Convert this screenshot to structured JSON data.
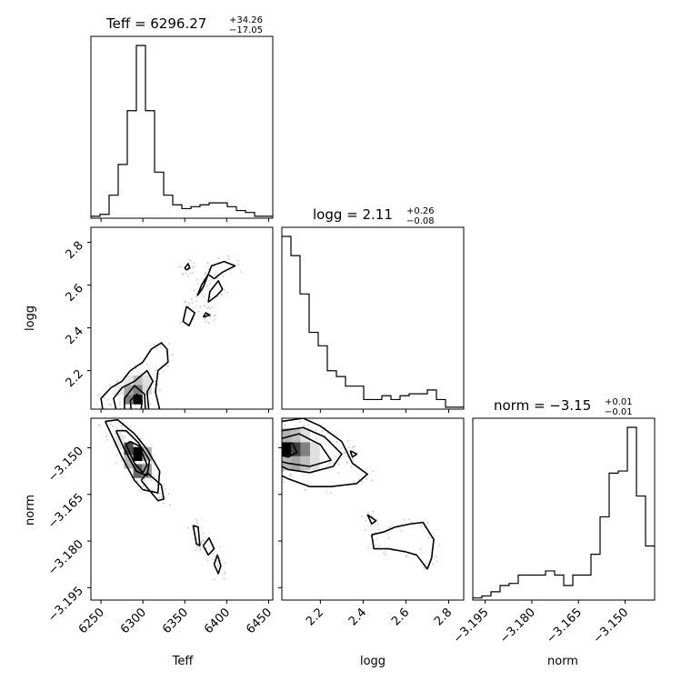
{
  "chart_data": {
    "type": "corner",
    "titles": [
      {
        "param": "Teff",
        "prefix": "Teff = ",
        "median": "6296.27",
        "plus": "+34.26",
        "minus": "−17.05"
      },
      {
        "param": "logg",
        "prefix": "logg = ",
        "median": "2.11",
        "plus": "+0.26",
        "minus": "−0.08"
      },
      {
        "param": "norm",
        "prefix": "norm = ",
        "median": "−3.15",
        "plus": "+0.01",
        "minus": "−0.01"
      }
    ],
    "axes": {
      "Teff": {
        "label": "Teff",
        "range": [
          6238,
          6455
        ],
        "ticks": [
          6250,
          6300,
          6350,
          6400,
          6450
        ],
        "tick_labels": [
          "6250",
          "6300",
          "6350",
          "6400",
          "6450"
        ]
      },
      "logg": {
        "label": "logg",
        "range": [
          2.02,
          2.87
        ],
        "ticks": [
          2.2,
          2.4,
          2.6,
          2.8
        ],
        "tick_labels": [
          "2.2",
          "2.4",
          "2.6",
          "2.8"
        ]
      },
      "norm": {
        "label": "norm",
        "range": [
          -3.199,
          -3.1405
        ],
        "ticks": [
          -3.195,
          -3.18,
          -3.165,
          -3.15
        ],
        "tick_labels": [
          "−3.195",
          "−3.180",
          "−3.165",
          "−3.150"
        ]
      }
    },
    "histograms": {
      "Teff": {
        "edges": [
          6238,
          6248.85,
          6259.7,
          6270.55,
          6281.4,
          6292.25,
          6303.1,
          6313.95,
          6324.8,
          6335.65,
          6346.5,
          6357.35,
          6368.2,
          6379.05,
          6389.9,
          6400.75,
          6411.6,
          6422.45,
          6433.3,
          6444.15,
          6455
        ],
        "counts": [
          1,
          2,
          12,
          28,
          56,
          90,
          56,
          24,
          12,
          7,
          5,
          6,
          7,
          8,
          8,
          6,
          4,
          3,
          1,
          1
        ]
      },
      "logg": {
        "edges": [
          2.02,
          2.0625,
          2.105,
          2.1475,
          2.19,
          2.2325,
          2.275,
          2.3175,
          2.36,
          2.4025,
          2.445,
          2.4875,
          2.53,
          2.5725,
          2.615,
          2.6575,
          2.7,
          2.7425,
          2.785,
          2.8275,
          2.87
        ],
        "counts": [
          90,
          80,
          60,
          40,
          33,
          20,
          17,
          12,
          12,
          5,
          5,
          7,
          5,
          7,
          8,
          8,
          10,
          5,
          1,
          1
        ]
      },
      "norm": {
        "edges": [
          -3.199,
          -3.196075,
          -3.19315,
          -3.190225,
          -3.1873,
          -3.184375,
          -3.18145,
          -3.178525,
          -3.1756,
          -3.172675,
          -3.16975,
          -3.166825,
          -3.1639,
          -3.160975,
          -3.15805,
          -3.155125,
          -3.1522,
          -3.149275,
          -3.14635,
          -3.143425,
          -3.1405
        ],
        "counts": [
          1,
          2,
          4,
          7,
          8,
          12,
          12,
          12,
          14,
          12,
          7,
          12,
          12,
          22,
          40,
          61,
          62,
          83,
          50,
          26
        ]
      }
    },
    "hist2d": {
      "Teff_logg": [
        {
          "x": 6294,
          "y": 2.065,
          "v": 1.0
        },
        {
          "x": 6294,
          "y": 2.11,
          "v": 0.5
        },
        {
          "x": 6283,
          "y": 2.065,
          "v": 0.5
        },
        {
          "x": 6283,
          "y": 2.11,
          "v": 0.35
        },
        {
          "x": 6294,
          "y": 2.155,
          "v": 0.25
        },
        {
          "x": 6305,
          "y": 2.11,
          "v": 0.15
        },
        {
          "x": 6272,
          "y": 2.11,
          "v": 0.08
        },
        {
          "x": 6305,
          "y": 2.155,
          "v": 0.12
        },
        {
          "x": 6283,
          "y": 2.155,
          "v": 0.1
        }
      ],
      "Teff_norm": [
        {
          "x": 6294,
          "y": -3.152,
          "v": 1.0
        },
        {
          "x": 6283,
          "y": -3.1505,
          "v": 0.7
        },
        {
          "x": 6294,
          "y": -3.1575,
          "v": 0.6
        },
        {
          "x": 6305,
          "y": -3.1575,
          "v": 0.4
        },
        {
          "x": 6305,
          "y": -3.152,
          "v": 0.3
        },
        {
          "x": 6283,
          "y": -3.1545,
          "v": 0.3
        },
        {
          "x": 6272,
          "y": -3.148,
          "v": 0.1
        }
      ],
      "logg_norm": [
        {
          "x": 2.04,
          "y": -3.1505,
          "v": 1.0
        },
        {
          "x": 2.085,
          "y": -3.1505,
          "v": 0.75
        },
        {
          "x": 2.13,
          "y": -3.1505,
          "v": 0.5
        },
        {
          "x": 2.085,
          "y": -3.155,
          "v": 0.35
        },
        {
          "x": 2.13,
          "y": -3.155,
          "v": 0.25
        },
        {
          "x": 2.04,
          "y": -3.155,
          "v": 0.3
        },
        {
          "x": 2.04,
          "y": -3.146,
          "v": 0.3
        },
        {
          "x": 2.085,
          "y": -3.146,
          "v": 0.25
        },
        {
          "x": 2.175,
          "y": -3.155,
          "v": 0.12
        },
        {
          "x": 2.13,
          "y": -3.146,
          "v": 0.12
        },
        {
          "x": 2.175,
          "y": -3.1505,
          "v": 0.12
        }
      ]
    },
    "contours": {
      "Teff_logg": [
        [
          [
            6252,
            2.02
          ],
          [
            6250,
            2.07
          ],
          [
            6262,
            2.12
          ],
          [
            6275,
            2.15
          ],
          [
            6285,
            2.2
          ],
          [
            6300,
            2.24
          ],
          [
            6310,
            2.3
          ],
          [
            6322,
            2.33
          ],
          [
            6329,
            2.3
          ],
          [
            6330,
            2.24
          ],
          [
            6318,
            2.2
          ],
          [
            6315,
            2.1
          ],
          [
            6320,
            2.02
          ]
        ],
        [
          [
            6268,
            2.02
          ],
          [
            6265,
            2.07
          ],
          [
            6275,
            2.12
          ],
          [
            6290,
            2.15
          ],
          [
            6305,
            2.2
          ],
          [
            6312,
            2.15
          ],
          [
            6305,
            2.1
          ],
          [
            6307,
            2.02
          ]
        ],
        [
          [
            6278,
            2.02
          ],
          [
            6278,
            2.07
          ],
          [
            6290,
            2.13
          ],
          [
            6302,
            2.09
          ],
          [
            6303,
            2.02
          ]
        ],
        [
          [
            6286,
            2.02
          ],
          [
            6285,
            2.06
          ],
          [
            6293,
            2.09
          ],
          [
            6299,
            2.06
          ],
          [
            6298,
            2.02
          ]
        ],
        [
          [
            6378,
            2.65
          ],
          [
            6382,
            2.69
          ],
          [
            6397,
            2.71
          ],
          [
            6410,
            2.69
          ],
          [
            6395,
            2.66
          ],
          [
            6385,
            2.63
          ],
          [
            6378,
            2.65
          ]
        ],
        [
          [
            6365,
            2.55
          ],
          [
            6370,
            2.6
          ],
          [
            6378,
            2.65
          ],
          [
            6372,
            2.59
          ],
          [
            6365,
            2.55
          ]
        ],
        [
          [
            6352,
            2.5
          ],
          [
            6348,
            2.43
          ],
          [
            6355,
            2.41
          ],
          [
            6362,
            2.47
          ],
          [
            6352,
            2.5
          ]
        ],
        [
          [
            6378,
            2.52
          ],
          [
            6388,
            2.55
          ],
          [
            6395,
            2.58
          ],
          [
            6390,
            2.62
          ],
          [
            6380,
            2.57
          ],
          [
            6378,
            2.52
          ]
        ],
        [
          [
            6352,
            2.67
          ],
          [
            6356,
            2.68
          ],
          [
            6354,
            2.7
          ],
          [
            6350,
            2.68
          ],
          [
            6352,
            2.67
          ]
        ],
        [
          [
            6372,
            2.45
          ],
          [
            6380,
            2.46
          ],
          [
            6375,
            2.47
          ],
          [
            6372,
            2.45
          ]
        ]
      ],
      "Teff_norm": [
        [
          [
            6255,
            -3.1415
          ],
          [
            6262,
            -3.1455
          ],
          [
            6275,
            -3.153
          ],
          [
            6290,
            -3.1605
          ],
          [
            6300,
            -3.1635
          ],
          [
            6318,
            -3.1645
          ],
          [
            6320,
            -3.1575
          ],
          [
            6305,
            -3.1505
          ],
          [
            6290,
            -3.1455
          ],
          [
            6270,
            -3.141
          ],
          [
            6255,
            -3.1415
          ]
        ],
        [
          [
            6268,
            -3.1445
          ],
          [
            6278,
            -3.1505
          ],
          [
            6292,
            -3.1575
          ],
          [
            6305,
            -3.159
          ],
          [
            6308,
            -3.154
          ],
          [
            6295,
            -3.1485
          ],
          [
            6280,
            -3.1445
          ],
          [
            6268,
            -3.1445
          ]
        ],
        [
          [
            6280,
            -3.149
          ],
          [
            6290,
            -3.155
          ],
          [
            6300,
            -3.158
          ],
          [
            6305,
            -3.1555
          ],
          [
            6296,
            -3.1495
          ],
          [
            6285,
            -3.148
          ],
          [
            6280,
            -3.149
          ]
        ],
        [
          [
            6298,
            -3.1605
          ],
          [
            6318,
            -3.167
          ],
          [
            6325,
            -3.1665
          ],
          [
            6322,
            -3.162
          ],
          [
            6305,
            -3.158
          ],
          [
            6298,
            -3.1605
          ]
        ],
        [
          [
            6360,
            -3.175
          ],
          [
            6364,
            -3.181
          ],
          [
            6368,
            -3.1815
          ],
          [
            6366,
            -3.1755
          ],
          [
            6360,
            -3.175
          ]
        ],
        [
          [
            6372,
            -3.1815
          ],
          [
            6378,
            -3.1845
          ],
          [
            6385,
            -3.1825
          ],
          [
            6379,
            -3.179
          ],
          [
            6372,
            -3.1815
          ]
        ],
        [
          [
            6385,
            -3.1875
          ],
          [
            6390,
            -3.1905
          ],
          [
            6393,
            -3.188
          ],
          [
            6389,
            -3.1845
          ],
          [
            6385,
            -3.1875
          ]
        ]
      ],
      "logg_norm": [
        [
          [
            2.02,
            -3.1415
          ],
          [
            2.12,
            -3.1405
          ],
          [
            2.2,
            -3.143
          ],
          [
            2.3,
            -3.148
          ],
          [
            2.35,
            -3.155
          ],
          [
            2.42,
            -3.1585
          ],
          [
            2.37,
            -3.1615
          ],
          [
            2.25,
            -3.1625
          ],
          [
            2.15,
            -3.1625
          ],
          [
            2.05,
            -3.16
          ],
          [
            2.02,
            -3.159
          ]
        ],
        [
          [
            2.02,
            -3.1445
          ],
          [
            2.12,
            -3.1435
          ],
          [
            2.22,
            -3.1465
          ],
          [
            2.3,
            -3.152
          ],
          [
            2.26,
            -3.156
          ],
          [
            2.15,
            -3.158
          ],
          [
            2.05,
            -3.157
          ],
          [
            2.02,
            -3.156
          ]
        ],
        [
          [
            2.02,
            -3.147
          ],
          [
            2.1,
            -3.1455
          ],
          [
            2.2,
            -3.149
          ],
          [
            2.25,
            -3.154
          ],
          [
            2.15,
            -3.156
          ],
          [
            2.05,
            -3.155
          ],
          [
            2.02,
            -3.1545
          ]
        ],
        [
          [
            2.02,
            -3.149
          ],
          [
            2.07,
            -3.1485
          ],
          [
            2.09,
            -3.1515
          ],
          [
            2.05,
            -3.153
          ],
          [
            2.02,
            -3.1525
          ]
        ],
        [
          [
            2.34,
            -3.151
          ],
          [
            2.37,
            -3.152
          ],
          [
            2.35,
            -3.153
          ],
          [
            2.34,
            -3.151
          ]
        ],
        [
          [
            2.42,
            -3.1715
          ],
          [
            2.46,
            -3.1735
          ],
          [
            2.44,
            -3.1745
          ],
          [
            2.42,
            -3.1715
          ]
        ],
        [
          [
            2.44,
            -3.178
          ],
          [
            2.5,
            -3.177
          ],
          [
            2.55,
            -3.1755
          ],
          [
            2.62,
            -3.1745
          ],
          [
            2.68,
            -3.174
          ],
          [
            2.73,
            -3.1795
          ],
          [
            2.72,
            -3.1855
          ],
          [
            2.7,
            -3.189
          ],
          [
            2.65,
            -3.1845
          ],
          [
            2.6,
            -3.1835
          ],
          [
            2.52,
            -3.1825
          ],
          [
            2.45,
            -3.1825
          ],
          [
            2.44,
            -3.178
          ]
        ]
      ]
    },
    "scatter_seed": 7
  }
}
